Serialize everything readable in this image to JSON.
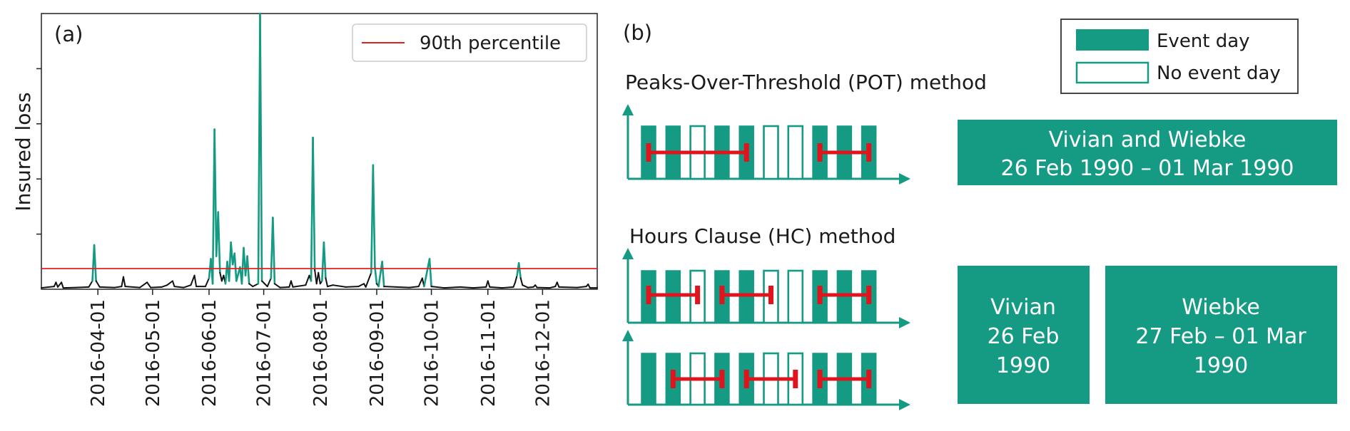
{
  "colors": {
    "teal": "#159a83",
    "threshold": "#e02020",
    "loss_line": "#111111",
    "event_bar": "#e0141c",
    "white": "#ffffff"
  },
  "panel_a": {
    "label": "(a)",
    "chart_data": {
      "type": "line",
      "title": "",
      "xlabel": "",
      "ylabel": "Insured loss",
      "x_ticks": [
        "2016-04-01",
        "2016-05-01",
        "2016-06-01",
        "2016-07-01",
        "2016-08-01",
        "2016-09-01",
        "2016-10-01",
        "2016-11-01",
        "2016-12-01"
      ],
      "xlim": [
        "2016-03-01",
        "2016-12-31"
      ],
      "ylim": [
        0,
        100
      ],
      "y_ticks_labeled": false,
      "y_tick_values": [
        20,
        40,
        60,
        80
      ],
      "threshold": {
        "name": "90th percentile",
        "value": 7.5
      },
      "legend": {
        "position": "top-right",
        "entries": [
          "90th percentile"
        ]
      },
      "series": [
        {
          "color": "teal-above-threshold-black-below",
          "points": [
            [
              "2016-03-01",
              0.5
            ],
            [
              "2016-03-08",
              1.0
            ],
            [
              "2016-03-09",
              2.5
            ],
            [
              "2016-03-10",
              0.8
            ],
            [
              "2016-03-12",
              2.5
            ],
            [
              "2016-03-13",
              0.5
            ],
            [
              "2016-03-20",
              0.6
            ],
            [
              "2016-03-27",
              0.8
            ],
            [
              "2016-03-29",
              3.0
            ],
            [
              "2016-03-30",
              16.0
            ],
            [
              "2016-03-31",
              3.0
            ],
            [
              "2016-04-02",
              0.8
            ],
            [
              "2016-04-10",
              0.6
            ],
            [
              "2016-04-14",
              1.0
            ],
            [
              "2016-04-15",
              4.5
            ],
            [
              "2016-04-16",
              1.0
            ],
            [
              "2016-04-24",
              0.6
            ],
            [
              "2016-04-28",
              2.5
            ],
            [
              "2016-04-30",
              0.6
            ],
            [
              "2016-05-06",
              0.8
            ],
            [
              "2016-05-09",
              1.5
            ],
            [
              "2016-05-12",
              3.0
            ],
            [
              "2016-05-13",
              1.0
            ],
            [
              "2016-05-18",
              0.6
            ],
            [
              "2016-05-22",
              1.5
            ],
            [
              "2016-05-24",
              5.0
            ],
            [
              "2016-05-25",
              1.0
            ],
            [
              "2016-05-30",
              1.0
            ],
            [
              "2016-06-01",
              4.0
            ],
            [
              "2016-06-02",
              11.0
            ],
            [
              "2016-06-03",
              2.0
            ],
            [
              "2016-06-04",
              58.0
            ],
            [
              "2016-06-05",
              12.0
            ],
            [
              "2016-06-06",
              28.0
            ],
            [
              "2016-06-07",
              6.0
            ],
            [
              "2016-06-08",
              3.0
            ],
            [
              "2016-06-09",
              5.0
            ],
            [
              "2016-06-10",
              2.0
            ],
            [
              "2016-06-11",
              10.0
            ],
            [
              "2016-06-12",
              3.0
            ],
            [
              "2016-06-13",
              17.0
            ],
            [
              "2016-06-14",
              9.0
            ],
            [
              "2016-06-15",
              13.0
            ],
            [
              "2016-06-16",
              3.0
            ],
            [
              "2016-06-18",
              8.0
            ],
            [
              "2016-06-19",
              2.0
            ],
            [
              "2016-06-20",
              15.0
            ],
            [
              "2016-06-21",
              5.0
            ],
            [
              "2016-06-22",
              12.0
            ],
            [
              "2016-06-23",
              2.0
            ],
            [
              "2016-06-25",
              1.0
            ],
            [
              "2016-06-28",
              2.0
            ],
            [
              "2016-06-29",
              100.0
            ],
            [
              "2016-06-30",
              3.0
            ],
            [
              "2016-07-03",
              1.0
            ],
            [
              "2016-07-05",
              4.0
            ],
            [
              "2016-07-06",
              26.0
            ],
            [
              "2016-07-07",
              2.0
            ],
            [
              "2016-07-10",
              0.6
            ],
            [
              "2016-07-15",
              0.8
            ],
            [
              "2016-07-16",
              3.0
            ],
            [
              "2016-07-17",
              0.8
            ],
            [
              "2016-07-24",
              1.5
            ],
            [
              "2016-07-26",
              5.0
            ],
            [
              "2016-07-27",
              3.0
            ],
            [
              "2016-07-28",
              55.0
            ],
            [
              "2016-07-29",
              7.0
            ],
            [
              "2016-07-30",
              2.0
            ],
            [
              "2016-07-31",
              6.0
            ],
            [
              "2016-08-01",
              2.0
            ],
            [
              "2016-08-02",
              3.0
            ],
            [
              "2016-08-03",
              17.0
            ],
            [
              "2016-08-04",
              4.0
            ],
            [
              "2016-08-05",
              1.0
            ],
            [
              "2016-08-08",
              1.5
            ],
            [
              "2016-08-15",
              0.8
            ],
            [
              "2016-08-22",
              1.0
            ],
            [
              "2016-08-25",
              2.0
            ],
            [
              "2016-08-26",
              0.8
            ],
            [
              "2016-08-29",
              6.0
            ],
            [
              "2016-08-30",
              45.0
            ],
            [
              "2016-08-31",
              8.0
            ],
            [
              "2016-09-01",
              2.0
            ],
            [
              "2016-09-02",
              1.0
            ],
            [
              "2016-09-04",
              10.0
            ],
            [
              "2016-09-05",
              1.0
            ],
            [
              "2016-09-12",
              0.8
            ],
            [
              "2016-09-19",
              0.6
            ],
            [
              "2016-09-24",
              1.0
            ],
            [
              "2016-09-26",
              4.0
            ],
            [
              "2016-09-27",
              1.0
            ],
            [
              "2016-09-30",
              11.0
            ],
            [
              "2016-10-01",
              1.0
            ],
            [
              "2016-10-08",
              0.5
            ],
            [
              "2016-10-17",
              0.8
            ],
            [
              "2016-10-24",
              0.5
            ],
            [
              "2016-10-31",
              0.8
            ],
            [
              "2016-11-01",
              3.0
            ],
            [
              "2016-11-02",
              0.8
            ],
            [
              "2016-11-09",
              0.5
            ],
            [
              "2016-11-15",
              0.8
            ],
            [
              "2016-11-16",
              2.5
            ],
            [
              "2016-11-17",
              5.0
            ],
            [
              "2016-11-18",
              9.5
            ],
            [
              "2016-11-19",
              4.0
            ],
            [
              "2016-11-20",
              1.5
            ],
            [
              "2016-11-23",
              0.6
            ],
            [
              "2016-11-26",
              0.8
            ],
            [
              "2016-11-27",
              1.5
            ],
            [
              "2016-11-28",
              0.6
            ],
            [
              "2016-12-05",
              0.5
            ],
            [
              "2016-12-08",
              1.0
            ],
            [
              "2016-12-09",
              2.5
            ],
            [
              "2016-12-10",
              0.8
            ],
            [
              "2016-12-20",
              0.6
            ],
            [
              "2016-12-25",
              1.0
            ],
            [
              "2016-12-26",
              1.8
            ],
            [
              "2016-12-27",
              0.5
            ],
            [
              "2016-12-31",
              0.5
            ]
          ]
        }
      ]
    }
  },
  "panel_b": {
    "label": "(b)",
    "legend": {
      "event": "Event day",
      "no_event": "No event day"
    },
    "pot": {
      "title": "Peaks-Over-Threshold (POT) method",
      "days": [
        1,
        1,
        0,
        1,
        1,
        0,
        0,
        1,
        1,
        1
      ],
      "event_spans": [
        [
          0,
          4
        ],
        [
          7,
          9
        ]
      ],
      "result_line1": "Vivian and Wiebke",
      "result_line2": "26 Feb 1990 – 01 Mar 1990"
    },
    "hc": {
      "title": "Hours Clause (HC) method",
      "row1": {
        "days": [
          1,
          1,
          0,
          1,
          1,
          0,
          0,
          1,
          1,
          1
        ],
        "event_spans": [
          [
            0,
            2
          ],
          [
            3,
            5
          ],
          [
            7,
            9
          ]
        ]
      },
      "row2": {
        "days": [
          1,
          1,
          0,
          1,
          1,
          0,
          0,
          1,
          1,
          1
        ],
        "event_spans": [
          [
            1,
            3
          ],
          [
            4,
            6
          ],
          [
            7,
            9
          ]
        ]
      },
      "result1": {
        "line1": "Vivian",
        "line2": "26 Feb",
        "line3": "1990"
      },
      "result2": {
        "line1": "Wiebke",
        "line2": "27 Feb – 01 Mar",
        "line3": "1990"
      }
    }
  }
}
